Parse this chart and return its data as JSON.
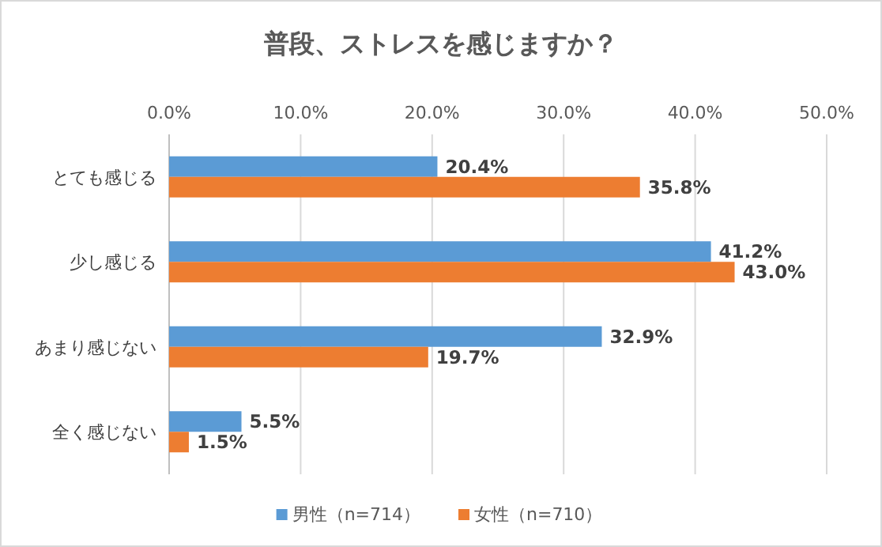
{
  "chart_data": {
    "type": "bar",
    "orientation": "horizontal",
    "title": "普段、ストレスを感じますか？",
    "categories": [
      "とても感じる",
      "少し感じる",
      "あまり感じない",
      "全く感じない"
    ],
    "series": [
      {
        "name": "男性（n=714）",
        "color": "#5b9bd5",
        "values": [
          20.4,
          41.2,
          32.9,
          5.5
        ],
        "value_labels": [
          "20.4%",
          "41.2%",
          "32.9%",
          "5.5%"
        ]
      },
      {
        "name": "女性（n=710）",
        "color": "#ed7d31",
        "values": [
          35.8,
          43.0,
          19.7,
          1.5
        ],
        "value_labels": [
          "35.8%",
          "43.0%",
          "19.7%",
          "1.5%"
        ]
      }
    ],
    "xlim": [
      0,
      50
    ],
    "xticks": [
      {
        "value": 0,
        "label": "0.0%"
      },
      {
        "value": 10,
        "label": "10.0%"
      },
      {
        "value": 20,
        "label": "20.0%"
      },
      {
        "value": 30,
        "label": "30.0%"
      },
      {
        "value": 40,
        "label": "40.0%"
      },
      {
        "value": 50,
        "label": "50.0%"
      }
    ],
    "grid": "x",
    "legend": "bottom"
  }
}
